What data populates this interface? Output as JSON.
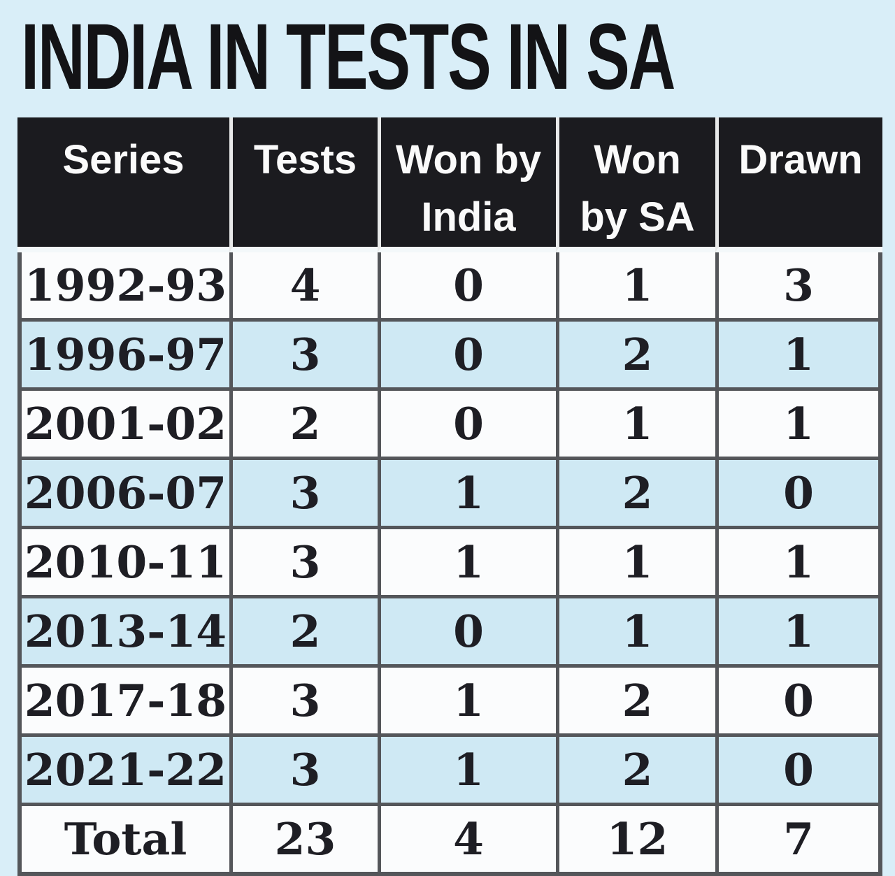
{
  "title": "INDIA IN TESTS IN SA",
  "colors": {
    "page_bg": "#d9eef8",
    "header_bg": "#1b1b1f",
    "header_text": "#fafafa",
    "row_white": "#fbfcfd",
    "row_alt_blue": "#cfe9f4",
    "border_gray": "#54565a",
    "title_text": "#131316"
  },
  "table": {
    "columns": [
      "Series",
      "Tests",
      "Won by\nIndia",
      "Won\nby SA",
      "Drawn"
    ],
    "rows": [
      {
        "cells": [
          "1992-93",
          "4",
          "0",
          "1",
          "3"
        ]
      },
      {
        "cells": [
          "1996-97",
          "3",
          "0",
          "2",
          "1"
        ]
      },
      {
        "cells": [
          "2001-02",
          "2",
          "0",
          "1",
          "1"
        ]
      },
      {
        "cells": [
          "2006-07",
          "3",
          "1",
          "2",
          "0"
        ]
      },
      {
        "cells": [
          "2010-11",
          "3",
          "1",
          "1",
          "1"
        ]
      },
      {
        "cells": [
          "2013-14",
          "2",
          "0",
          "1",
          "1"
        ]
      },
      {
        "cells": [
          "2017-18",
          "3",
          "1",
          "2",
          "0"
        ]
      },
      {
        "cells": [
          "2021-22",
          "3",
          "1",
          "2",
          "0"
        ]
      },
      {
        "cells": [
          "Total",
          "23",
          "4",
          "12",
          "7"
        ]
      }
    ]
  },
  "chart_data": {
    "type": "table",
    "title": "INDIA IN TESTS IN SA",
    "columns": [
      "Series",
      "Tests",
      "Won by India",
      "Won by SA",
      "Drawn"
    ],
    "rows": [
      [
        "1992-93",
        4,
        0,
        1,
        3
      ],
      [
        "1996-97",
        3,
        0,
        2,
        1
      ],
      [
        "2001-02",
        2,
        0,
        1,
        1
      ],
      [
        "2006-07",
        3,
        1,
        2,
        0
      ],
      [
        "2010-11",
        3,
        1,
        1,
        1
      ],
      [
        "2013-14",
        2,
        0,
        1,
        1
      ],
      [
        "2017-18",
        3,
        1,
        2,
        0
      ],
      [
        "2021-22",
        3,
        1,
        2,
        0
      ],
      [
        "Total",
        23,
        4,
        12,
        7
      ]
    ],
    "layout": {
      "header_style": "black-bar-white-text",
      "row_striping": "white / light-blue alternating",
      "grid": "on"
    }
  }
}
